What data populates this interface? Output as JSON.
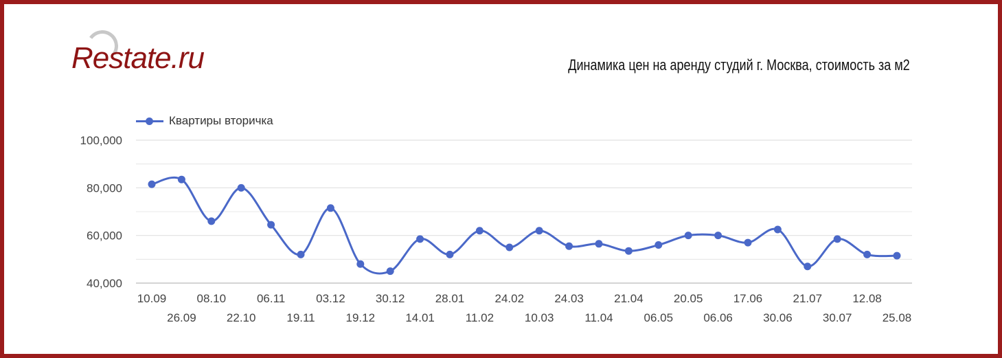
{
  "branding": {
    "logo_text": "Restate.ru"
  },
  "header": {
    "title": "Динамика цен на аренду студий г. Москва, стоимость за м2"
  },
  "colors": {
    "frame": "#9b1c1c",
    "logo": "#8e1414",
    "series": "#4a68c8",
    "grid": "#e0e0e0",
    "axis_text": "#444444"
  },
  "chart_data": {
    "type": "line",
    "title": "Динамика цен на аренду студий г. Москва, стоимость за м2",
    "xlabel": "",
    "ylabel": "",
    "ylim": [
      40000,
      100000
    ],
    "yticks": [
      "40,000",
      "60,000",
      "80,000",
      "100,000"
    ],
    "grid": true,
    "legend_position": "top-left",
    "categories": [
      "10.09",
      "26.09",
      "08.10",
      "22.10",
      "06.11",
      "19.11",
      "03.12",
      "19.12",
      "30.12",
      "14.01",
      "28.01",
      "11.02",
      "24.02",
      "10.03",
      "24.03",
      "11.04",
      "21.04",
      "06.05",
      "20.05",
      "06.06",
      "17.06",
      "30.06",
      "21.07",
      "30.07",
      "12.08",
      "25.08"
    ],
    "series": [
      {
        "name": "Квартиры вторичка",
        "values": [
          81500,
          83500,
          66000,
          80000,
          64500,
          52000,
          71500,
          48000,
          45000,
          58500,
          52000,
          62000,
          55000,
          62000,
          55500,
          56500,
          53500,
          56000,
          60000,
          60000,
          57000,
          62500,
          47000,
          58500,
          52000,
          51500
        ]
      }
    ]
  }
}
